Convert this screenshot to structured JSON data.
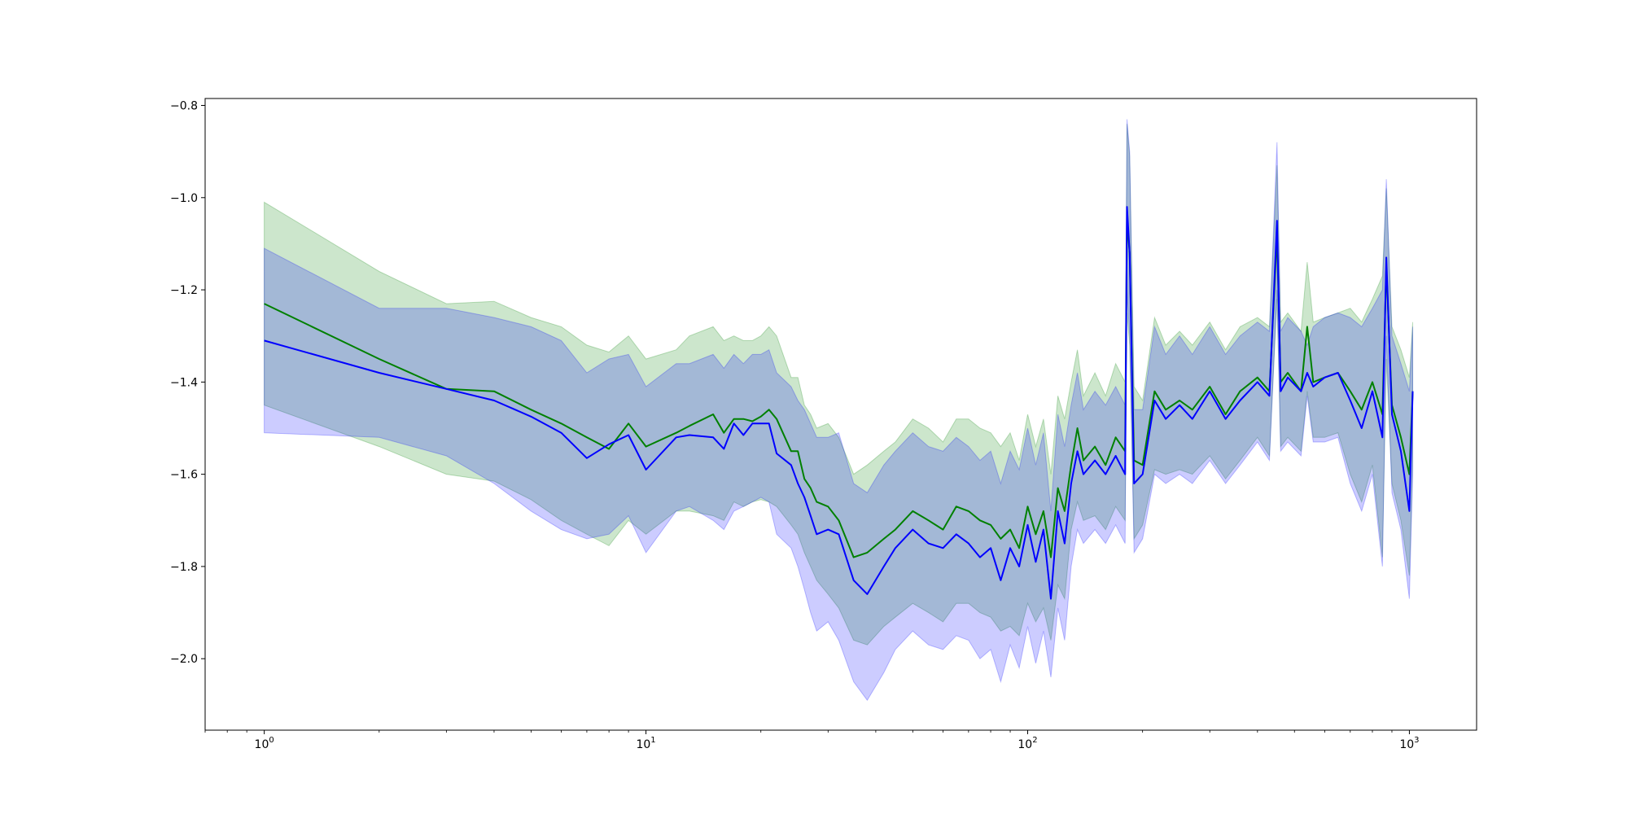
{
  "chart_data": {
    "type": "line",
    "title": "",
    "xlabel": "",
    "ylabel": "",
    "xscale": "log",
    "xlim": [
      0.7,
      1500
    ],
    "ylim": [
      -2.155,
      -0.785
    ],
    "grid": false,
    "x_ticks": [
      {
        "value": 1,
        "base": "10",
        "exp": "0"
      },
      {
        "value": 10,
        "base": "10",
        "exp": "1"
      },
      {
        "value": 100,
        "base": "10",
        "exp": "2"
      },
      {
        "value": 1000,
        "base": "10",
        "exp": "3"
      }
    ],
    "y_ticks": [
      {
        "value": -0.8,
        "label": "−0.8"
      },
      {
        "value": -1.0,
        "label": "−1.0"
      },
      {
        "value": -1.2,
        "label": "−1.2"
      },
      {
        "value": -1.4,
        "label": "−1.4"
      },
      {
        "value": -1.6,
        "label": "−1.6"
      },
      {
        "value": -1.8,
        "label": "−1.8"
      },
      {
        "value": -2.0,
        "label": "−2.0"
      }
    ],
    "series": [
      {
        "color": "#008000",
        "band_color": "#008000",
        "band_opacity": 0.2,
        "x": [
          1,
          2,
          3,
          4,
          5,
          6,
          7,
          8,
          9,
          10,
          12,
          13,
          15,
          16,
          17,
          18,
          19,
          20,
          21,
          22,
          24,
          25,
          26,
          27,
          28,
          30,
          32,
          35,
          38,
          42,
          45,
          50,
          55,
          60,
          65,
          70,
          75,
          80,
          85,
          90,
          95,
          100,
          105,
          110,
          115,
          120,
          125,
          130,
          135,
          140,
          150,
          160,
          170,
          180,
          182,
          185,
          190,
          200,
          215,
          230,
          250,
          270,
          300,
          330,
          360,
          400,
          430,
          450,
          460,
          480,
          520,
          540,
          560,
          600,
          650,
          700,
          750,
          800,
          850,
          870,
          900,
          950,
          1000,
          1020
        ],
        "mean": [
          -1.23,
          -1.35,
          -1.415,
          -1.42,
          -1.46,
          -1.49,
          -1.52,
          -1.545,
          -1.49,
          -1.54,
          -1.51,
          -1.495,
          -1.47,
          -1.51,
          -1.48,
          -1.48,
          -1.485,
          -1.475,
          -1.46,
          -1.48,
          -1.55,
          -1.55,
          -1.61,
          -1.63,
          -1.66,
          -1.67,
          -1.7,
          -1.78,
          -1.77,
          -1.74,
          -1.72,
          -1.68,
          -1.7,
          -1.72,
          -1.67,
          -1.68,
          -1.7,
          -1.71,
          -1.74,
          -1.72,
          -1.76,
          -1.67,
          -1.73,
          -1.68,
          -1.78,
          -1.63,
          -1.68,
          -1.58,
          -1.5,
          -1.57,
          -1.54,
          -1.58,
          -1.52,
          -1.55,
          -1.05,
          -1.12,
          -1.57,
          -1.58,
          -1.42,
          -1.46,
          -1.44,
          -1.46,
          -1.41,
          -1.47,
          -1.42,
          -1.39,
          -1.42,
          -1.08,
          -1.4,
          -1.38,
          -1.42,
          -1.28,
          -1.4,
          -1.39,
          -1.38,
          -1.42,
          -1.46,
          -1.4,
          -1.47,
          -1.15,
          -1.45,
          -1.52,
          -1.6,
          -1.42
        ],
        "lower": [
          -1.45,
          -1.54,
          -1.6,
          -1.615,
          -1.655,
          -1.7,
          -1.73,
          -1.755,
          -1.7,
          -1.73,
          -1.68,
          -1.68,
          -1.69,
          -1.7,
          -1.66,
          -1.67,
          -1.66,
          -1.655,
          -1.66,
          -1.67,
          -1.71,
          -1.73,
          -1.77,
          -1.8,
          -1.83,
          -1.86,
          -1.89,
          -1.96,
          -1.97,
          -1.93,
          -1.91,
          -1.88,
          -1.9,
          -1.92,
          -1.88,
          -1.88,
          -1.9,
          -1.91,
          -1.94,
          -1.93,
          -1.95,
          -1.88,
          -1.92,
          -1.89,
          -1.96,
          -1.84,
          -1.87,
          -1.72,
          -1.66,
          -1.7,
          -1.69,
          -1.72,
          -1.67,
          -1.7,
          -1.25,
          -1.32,
          -1.74,
          -1.71,
          -1.59,
          -1.6,
          -1.59,
          -1.6,
          -1.56,
          -1.61,
          -1.57,
          -1.52,
          -1.56,
          -1.22,
          -1.54,
          -1.52,
          -1.55,
          -1.42,
          -1.52,
          -1.52,
          -1.51,
          -1.6,
          -1.66,
          -1.58,
          -1.78,
          -1.35,
          -1.62,
          -1.7,
          -1.82,
          -1.58
        ],
        "upper": [
          -1.01,
          -1.16,
          -1.23,
          -1.225,
          -1.26,
          -1.28,
          -1.32,
          -1.335,
          -1.3,
          -1.35,
          -1.33,
          -1.3,
          -1.28,
          -1.31,
          -1.3,
          -1.31,
          -1.31,
          -1.3,
          -1.28,
          -1.3,
          -1.39,
          -1.39,
          -1.45,
          -1.47,
          -1.5,
          -1.49,
          -1.52,
          -1.6,
          -1.58,
          -1.55,
          -1.53,
          -1.48,
          -1.5,
          -1.53,
          -1.48,
          -1.48,
          -1.5,
          -1.51,
          -1.54,
          -1.51,
          -1.57,
          -1.47,
          -1.54,
          -1.48,
          -1.6,
          -1.43,
          -1.48,
          -1.4,
          -1.33,
          -1.43,
          -1.38,
          -1.43,
          -1.36,
          -1.4,
          -0.84,
          -0.91,
          -1.41,
          -1.44,
          -1.26,
          -1.32,
          -1.29,
          -1.32,
          -1.27,
          -1.33,
          -1.28,
          -1.26,
          -1.28,
          -0.93,
          -1.27,
          -1.25,
          -1.29,
          -1.14,
          -1.27,
          -1.26,
          -1.25,
          -1.24,
          -1.27,
          -1.22,
          -1.17,
          -0.98,
          -1.28,
          -1.33,
          -1.39,
          -1.27
        ]
      },
      {
        "color": "#0000ff",
        "band_color": "#0000ff",
        "band_opacity": 0.2,
        "x": [
          1,
          2,
          3,
          4,
          5,
          6,
          7,
          8,
          9,
          10,
          12,
          13,
          15,
          16,
          17,
          18,
          19,
          20,
          21,
          22,
          24,
          25,
          26,
          27,
          28,
          30,
          32,
          35,
          38,
          42,
          45,
          50,
          55,
          60,
          65,
          70,
          75,
          80,
          85,
          90,
          95,
          100,
          105,
          110,
          115,
          120,
          125,
          130,
          135,
          140,
          150,
          160,
          170,
          180,
          182,
          185,
          190,
          200,
          215,
          230,
          250,
          270,
          300,
          330,
          360,
          400,
          430,
          450,
          460,
          480,
          520,
          540,
          560,
          600,
          650,
          700,
          750,
          800,
          850,
          870,
          900,
          950,
          1000,
          1020
        ],
        "mean": [
          -1.31,
          -1.38,
          -1.415,
          -1.44,
          -1.475,
          -1.51,
          -1.565,
          -1.535,
          -1.515,
          -1.59,
          -1.52,
          -1.515,
          -1.52,
          -1.545,
          -1.49,
          -1.515,
          -1.49,
          -1.49,
          -1.49,
          -1.555,
          -1.58,
          -1.62,
          -1.65,
          -1.69,
          -1.73,
          -1.72,
          -1.73,
          -1.83,
          -1.86,
          -1.8,
          -1.76,
          -1.72,
          -1.75,
          -1.76,
          -1.73,
          -1.75,
          -1.78,
          -1.76,
          -1.83,
          -1.76,
          -1.8,
          -1.71,
          -1.79,
          -1.72,
          -1.87,
          -1.68,
          -1.75,
          -1.62,
          -1.55,
          -1.6,
          -1.57,
          -1.6,
          -1.56,
          -1.6,
          -1.02,
          -1.12,
          -1.62,
          -1.6,
          -1.44,
          -1.48,
          -1.45,
          -1.48,
          -1.42,
          -1.48,
          -1.44,
          -1.4,
          -1.43,
          -1.05,
          -1.42,
          -1.39,
          -1.42,
          -1.38,
          -1.41,
          -1.39,
          -1.38,
          -1.44,
          -1.5,
          -1.42,
          -1.52,
          -1.13,
          -1.47,
          -1.55,
          -1.68,
          -1.42
        ],
        "lower": [
          -1.51,
          -1.52,
          -1.56,
          -1.62,
          -1.68,
          -1.72,
          -1.74,
          -1.73,
          -1.69,
          -1.77,
          -1.68,
          -1.67,
          -1.7,
          -1.72,
          -1.68,
          -1.67,
          -1.66,
          -1.65,
          -1.66,
          -1.73,
          -1.76,
          -1.8,
          -1.85,
          -1.9,
          -1.94,
          -1.92,
          -1.96,
          -2.05,
          -2.09,
          -2.03,
          -1.98,
          -1.94,
          -1.97,
          -1.98,
          -1.95,
          -1.96,
          -2.0,
          -1.98,
          -2.05,
          -1.97,
          -2.02,
          -1.93,
          -2.01,
          -1.94,
          -2.04,
          -1.89,
          -1.96,
          -1.8,
          -1.72,
          -1.75,
          -1.72,
          -1.75,
          -1.71,
          -1.75,
          -1.2,
          -1.3,
          -1.77,
          -1.74,
          -1.6,
          -1.62,
          -1.6,
          -1.62,
          -1.57,
          -1.62,
          -1.58,
          -1.53,
          -1.57,
          -1.2,
          -1.55,
          -1.53,
          -1.56,
          -1.43,
          -1.53,
          -1.53,
          -1.52,
          -1.62,
          -1.68,
          -1.6,
          -1.8,
          -1.3,
          -1.64,
          -1.72,
          -1.87,
          -1.6
        ],
        "upper": [
          -1.11,
          -1.24,
          -1.24,
          -1.26,
          -1.28,
          -1.31,
          -1.38,
          -1.35,
          -1.34,
          -1.41,
          -1.36,
          -1.36,
          -1.34,
          -1.37,
          -1.34,
          -1.36,
          -1.34,
          -1.34,
          -1.33,
          -1.38,
          -1.41,
          -1.44,
          -1.46,
          -1.49,
          -1.52,
          -1.52,
          -1.51,
          -1.62,
          -1.64,
          -1.58,
          -1.55,
          -1.51,
          -1.54,
          -1.55,
          -1.52,
          -1.54,
          -1.57,
          -1.55,
          -1.62,
          -1.55,
          -1.59,
          -1.5,
          -1.58,
          -1.51,
          -1.68,
          -1.47,
          -1.54,
          -1.45,
          -1.38,
          -1.46,
          -1.42,
          -1.45,
          -1.41,
          -1.45,
          -0.83,
          -0.9,
          -1.46,
          -1.46,
          -1.28,
          -1.34,
          -1.3,
          -1.34,
          -1.28,
          -1.34,
          -1.3,
          -1.27,
          -1.29,
          -0.88,
          -1.29,
          -1.26,
          -1.29,
          -1.32,
          -1.28,
          -1.26,
          -1.25,
          -1.26,
          -1.28,
          -1.24,
          -1.2,
          -0.96,
          -1.3,
          -1.36,
          -1.42,
          -1.28
        ]
      }
    ]
  }
}
